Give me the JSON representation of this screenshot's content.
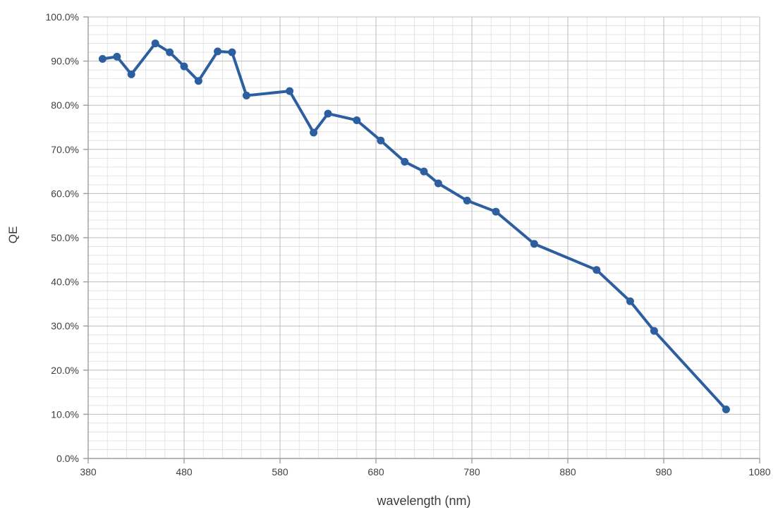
{
  "chart_data": {
    "type": "line",
    "title": "",
    "xlabel": "wavelength (nm)",
    "ylabel": "QE",
    "xlim": [
      380,
      1080
    ],
    "ylim": [
      0,
      100
    ],
    "x_major_step": 100,
    "x_minor_step": 20,
    "y_major_step": 10,
    "y_minor_step": 2,
    "grid": "on",
    "legend": "none",
    "x_tick_labels": [
      "380",
      "480",
      "580",
      "680",
      "780",
      "880",
      "980",
      "1080"
    ],
    "y_tick_labels": [
      "0.0%",
      "10.0%",
      "20.0%",
      "30.0%",
      "40.0%",
      "50.0%",
      "60.0%",
      "70.0%",
      "80.0%",
      "90.0%",
      "100.0%"
    ],
    "series": [
      {
        "name": "QE",
        "marker": "circle",
        "x": [
          395,
          410,
          425,
          450,
          465,
          480,
          495,
          515,
          530,
          545,
          590,
          615,
          630,
          660,
          685,
          710,
          730,
          745,
          775,
          805,
          845,
          910,
          945,
          970,
          1045
        ],
        "y": [
          90.5,
          91.0,
          87.0,
          94.0,
          92.0,
          88.8,
          85.5,
          92.2,
          92.0,
          82.2,
          83.2,
          73.8,
          78.1,
          76.6,
          72.0,
          67.2,
          65.0,
          62.3,
          58.4,
          55.9,
          48.6,
          42.7,
          35.6,
          28.9,
          11.1
        ]
      }
    ],
    "colors": {
      "line": "#2d5fa0",
      "marker": "#2d5fa0",
      "grid_minor": "#e4e4e4",
      "grid_major": "#bdbdbd",
      "axis": "#9d9d9d",
      "tick_label": "#3f3f3f",
      "axis_title": "#3b3b3b",
      "background": "#ffffff"
    }
  }
}
